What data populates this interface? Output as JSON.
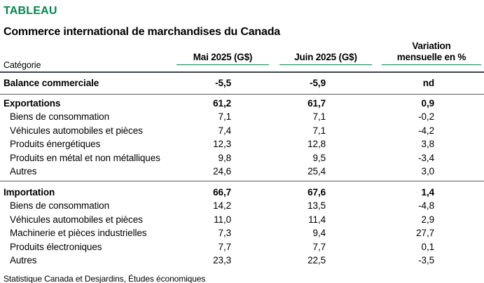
{
  "header": {
    "kicker": "TABLEAU",
    "title": "Commerce international de marchandises du Canada"
  },
  "table": {
    "category_label": "Catégorie",
    "columns": [
      {
        "label": "Mai 2025 (G$)"
      },
      {
        "label": "Juin 2025 (G$)"
      },
      {
        "label_line1": "Variation",
        "label_line2": "mensuelle en %"
      }
    ],
    "rows": [
      {
        "label": "Balance commerciale",
        "mai": "-5,5",
        "juin": "-5,9",
        "variation": "nd"
      },
      {
        "label": "Exportations",
        "mai": "61,2",
        "juin": "61,7",
        "variation": "0,9"
      },
      {
        "label": "Biens de consommation",
        "mai": "7,1",
        "juin": "7,1",
        "variation": "-0,2"
      },
      {
        "label": "Véhicules automobiles et pièces",
        "mai": "7,4",
        "juin": "7,1",
        "variation": "-4,2"
      },
      {
        "label": "Produits énergétiques",
        "mai": "12,3",
        "juin": "12,8",
        "variation": "3,8"
      },
      {
        "label": "Produits en métal et non métalliques",
        "mai": "9,8",
        "juin": "9,5",
        "variation": "-3,4"
      },
      {
        "label": "Autres",
        "mai": "24,6",
        "juin": "25,4",
        "variation": "3,0"
      },
      {
        "label": "Importation",
        "mai": "66,7",
        "juin": "67,6",
        "variation": "1,4"
      },
      {
        "label": "Biens de consommation",
        "mai": "14,2",
        "juin": "13,5",
        "variation": "-4,8"
      },
      {
        "label": "Véhicules automobiles et pièces",
        "mai": "11,0",
        "juin": "11,4",
        "variation": "2,9"
      },
      {
        "label": "Machinerie et pièces industrielles",
        "mai": "7,3",
        "juin": "9,4",
        "variation": "27,7"
      },
      {
        "label": "Produits électroniques",
        "mai": "7,7",
        "juin": "7,7",
        "variation": "0,1"
      },
      {
        "label": "Autres",
        "mai": "23,3",
        "juin": "22,5",
        "variation": "-3,5"
      }
    ]
  },
  "footer": {
    "source": "Statistique Canada et Desjardins, Études économiques"
  },
  "colors": {
    "accent_green": "#00874E",
    "header_rule": "#3E434C",
    "row_rule": "#595959"
  },
  "chart_data": {
    "type": "table",
    "title": "Commerce international de marchandises du Canada",
    "columns": [
      "Catégorie",
      "Mai 2025 (G$)",
      "Juin 2025 (G$)",
      "Variation mensuelle en %"
    ],
    "rows": [
      [
        "Balance commerciale",
        -5.5,
        -5.9,
        "nd"
      ],
      [
        "Exportations",
        61.2,
        61.7,
        0.9
      ],
      [
        "Biens de consommation",
        7.1,
        7.1,
        -0.2
      ],
      [
        "Véhicules automobiles et pièces",
        7.4,
        7.1,
        -4.2
      ],
      [
        "Produits énergétiques",
        12.3,
        12.8,
        3.8
      ],
      [
        "Produits en métal et non métalliques",
        9.8,
        9.5,
        -3.4
      ],
      [
        "Autres",
        24.6,
        25.4,
        3.0
      ],
      [
        "Importation",
        66.7,
        67.6,
        1.4
      ],
      [
        "Biens de consommation",
        14.2,
        13.5,
        -4.8
      ],
      [
        "Véhicules automobiles et pièces",
        11.0,
        11.4,
        2.9
      ],
      [
        "Machinerie et pièces industrielles",
        7.3,
        9.4,
        27.7
      ],
      [
        "Produits électroniques",
        7.7,
        7.7,
        0.1
      ],
      [
        "Autres",
        23.3,
        22.5,
        -3.5
      ]
    ],
    "section_rows": [
      "Balance commerciale",
      "Exportations",
      "Importation"
    ],
    "units": "G$ (milliards de dollars), variation en %",
    "source": "Statistique Canada et Desjardins, Études économiques"
  }
}
